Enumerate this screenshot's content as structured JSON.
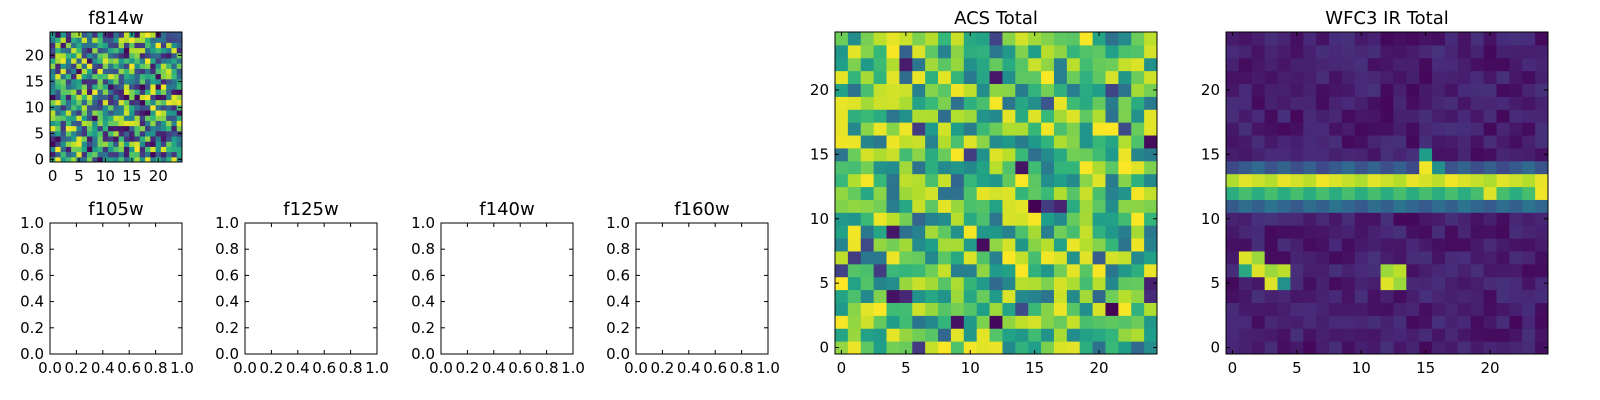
{
  "chart_data": [
    {
      "type": "heatmap",
      "title": "f814w",
      "grid_size": 25,
      "colormap": "viridis",
      "xticks": [
        "0",
        "5",
        "10",
        "15",
        "20"
      ],
      "yticks": [
        "0",
        "5",
        "10",
        "15",
        "20"
      ],
      "xlim": [
        -0.5,
        24.5
      ],
      "ylim": [
        -0.5,
        24.5
      ],
      "pattern": "uniform random noise",
      "values": [],
      "note": ""
    },
    {
      "type": "heatmap",
      "title": "ACS Total",
      "grid_size": 25,
      "colormap": "viridis",
      "xticks": [
        "0",
        "5",
        "10",
        "15",
        "20"
      ],
      "yticks": [
        "0",
        "5",
        "10",
        "15",
        "20"
      ],
      "xlim": [
        -0.5,
        24.5
      ],
      "ylim": [
        -0.5,
        24.5
      ],
      "pattern": "random noise skewed high (mostly green-yellow)",
      "values": [],
      "note": ""
    },
    {
      "type": "heatmap",
      "title": "WFC3 IR Total",
      "grid_size": 25,
      "colormap": "viridis",
      "xticks": [
        "0",
        "5",
        "10",
        "15",
        "20"
      ],
      "yticks": [
        "0",
        "5",
        "10",
        "15",
        "20"
      ],
      "xlim": [
        -0.5,
        24.5
      ],
      "ylim": [
        -0.5,
        24.5
      ],
      "pattern": "low background with bright horizontal band and two small blobs",
      "bright_rows": [
        12,
        13
      ],
      "blobs": [
        {
          "cells": [
            [
              1,
              7
            ],
            [
              2,
              7
            ],
            [
              2,
              6
            ],
            [
              3,
              6
            ],
            [
              4,
              6
            ],
            [
              3,
              5
            ],
            [
              4,
              5
            ]
          ]
        },
        {
          "cells": [
            [
              12,
              6
            ],
            [
              13,
              6
            ],
            [
              12,
              5
            ],
            [
              13,
              5
            ]
          ]
        }
      ],
      "values": [],
      "note": ""
    },
    {
      "type": "scatter",
      "title": "f105w",
      "series": [],
      "xlim": [
        0.0,
        1.0
      ],
      "ylim": [
        0.0,
        1.0
      ],
      "xticks": [
        "0.0",
        "0.2",
        "0.4",
        "0.6",
        "0.8",
        "1.0"
      ],
      "yticks": [
        "0.0",
        "0.2",
        "0.4",
        "0.6",
        "0.8",
        "1.0"
      ]
    },
    {
      "type": "scatter",
      "title": "f125w",
      "series": [],
      "xlim": [
        0.0,
        1.0
      ],
      "ylim": [
        0.0,
        1.0
      ],
      "xticks": [
        "0.0",
        "0.2",
        "0.4",
        "0.6",
        "0.8",
        "1.0"
      ],
      "yticks": [
        "0.0",
        "0.2",
        "0.4",
        "0.6",
        "0.8",
        "1.0"
      ]
    },
    {
      "type": "scatter",
      "title": "f140w",
      "series": [],
      "xlim": [
        0.0,
        1.0
      ],
      "ylim": [
        0.0,
        1.0
      ],
      "xticks": [
        "0.0",
        "0.2",
        "0.4",
        "0.6",
        "0.8",
        "1.0"
      ],
      "yticks": [
        "0.0",
        "0.2",
        "0.4",
        "0.6",
        "0.8",
        "1.0"
      ]
    },
    {
      "type": "scatter",
      "title": "f160w",
      "series": [],
      "xlim": [
        0.0,
        1.0
      ],
      "ylim": [
        0.0,
        1.0
      ],
      "xticks": [
        "0.0",
        "0.2",
        "0.4",
        "0.6",
        "0.8",
        "1.0"
      ],
      "yticks": [
        "0.0",
        "0.2",
        "0.4",
        "0.6",
        "0.8",
        "1.0"
      ]
    }
  ],
  "colors": {
    "axis": "#000000",
    "background": "#ffffff",
    "viridis_low": "#440154",
    "viridis_high": "#fde725"
  }
}
